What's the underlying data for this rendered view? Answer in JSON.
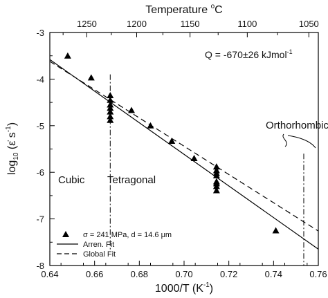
{
  "chart_data": {
    "type": "scatter",
    "xlabel": "1000/T (K",
    "xlabel_sup": "-1",
    "xlabel_close": ")",
    "ylabel": "log",
    "ylabel_sub": "10",
    "ylabel_rest": " (ε̇ s",
    "ylabel_sup": "-1",
    "ylabel_close": ")",
    "top_xlabel": "Temperature ",
    "top_xlabel_sup": "o",
    "top_xlabel_unit": "C",
    "xlim": [
      0.64,
      0.76
    ],
    "ylim": [
      -8,
      -3
    ],
    "x_ticks": [
      0.64,
      0.66,
      0.68,
      0.7,
      0.72,
      0.74,
      0.76
    ],
    "x_tick_labels": [
      "0.64",
      "0.66",
      "0.68",
      "0.70",
      "0.72",
      "0.74",
      "0.76"
    ],
    "y_ticks": [
      -8,
      -7,
      -6,
      -5,
      -4,
      -3
    ],
    "y_tick_labels": [
      "-8",
      "-7",
      "-6",
      "-5",
      "-4",
      "-3"
    ],
    "top_ticks_celsius": [
      1250,
      1200,
      1150,
      1100,
      1050
    ],
    "top_tick_labels": [
      "1250",
      "1200",
      "1150",
      "1100",
      "1050"
    ],
    "series": [
      {
        "name": "σ = 241 MPa, d = 14.6 μm",
        "marker": "triangle",
        "points": [
          {
            "x": 0.648,
            "y": -3.5
          },
          {
            "x": 0.6585,
            "y": -3.97
          },
          {
            "x": 0.667,
            "y": -4.35
          },
          {
            "x": 0.667,
            "y": -4.45
          },
          {
            "x": 0.667,
            "y": -4.55
          },
          {
            "x": 0.667,
            "y": -4.62
          },
          {
            "x": 0.667,
            "y": -4.7
          },
          {
            "x": 0.667,
            "y": -4.8
          },
          {
            "x": 0.667,
            "y": -4.88
          },
          {
            "x": 0.6765,
            "y": -4.67
          },
          {
            "x": 0.685,
            "y": -5.0
          },
          {
            "x": 0.6945,
            "y": -5.33
          },
          {
            "x": 0.7045,
            "y": -5.7
          },
          {
            "x": 0.7145,
            "y": -5.88
          },
          {
            "x": 0.7145,
            "y": -5.96
          },
          {
            "x": 0.7145,
            "y": -6.02
          },
          {
            "x": 0.7145,
            "y": -6.07
          },
          {
            "x": 0.7145,
            "y": -6.2
          },
          {
            "x": 0.7145,
            "y": -6.24
          },
          {
            "x": 0.7145,
            "y": -6.3
          },
          {
            "x": 0.7145,
            "y": -6.39
          },
          {
            "x": 0.741,
            "y": -7.25
          }
        ]
      },
      {
        "name": "Arren. Fit",
        "line_style": "solid",
        "points": [
          {
            "x": 0.64,
            "y": -3.58
          },
          {
            "x": 0.76,
            "y": -7.65
          }
        ]
      },
      {
        "name": "Global Fit",
        "line_style": "dashed",
        "points": [
          {
            "x": 0.64,
            "y": -3.62
          },
          {
            "x": 0.76,
            "y": -7.26
          }
        ]
      }
    ],
    "phase_boundaries": [
      0.667,
      0.7535
    ],
    "annotations": {
      "q_prefix": "Q = -670±26 kJmol",
      "q_sup": "-1",
      "cubic": "Cubic",
      "tetragonal": "Tetragonal",
      "orthorhombic": "Orthorhombic"
    },
    "legend_position": "bottom-left",
    "grid": false
  }
}
